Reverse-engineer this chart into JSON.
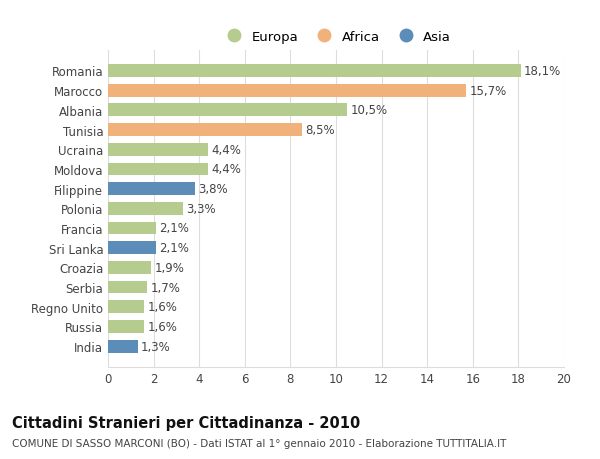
{
  "categories": [
    "Romania",
    "Marocco",
    "Albania",
    "Tunisia",
    "Ucraina",
    "Moldova",
    "Filippine",
    "Polonia",
    "Francia",
    "Sri Lanka",
    "Croazia",
    "Serbia",
    "Regno Unito",
    "Russia",
    "India"
  ],
  "values": [
    18.1,
    15.7,
    10.5,
    8.5,
    4.4,
    4.4,
    3.8,
    3.3,
    2.1,
    2.1,
    1.9,
    1.7,
    1.6,
    1.6,
    1.3
  ],
  "continents": [
    "Europa",
    "Africa",
    "Europa",
    "Africa",
    "Europa",
    "Europa",
    "Asia",
    "Europa",
    "Europa",
    "Asia",
    "Europa",
    "Europa",
    "Europa",
    "Europa",
    "Asia"
  ],
  "labels": [
    "18,1%",
    "15,7%",
    "10,5%",
    "8,5%",
    "4,4%",
    "4,4%",
    "3,8%",
    "3,3%",
    "2,1%",
    "2,1%",
    "1,9%",
    "1,7%",
    "1,6%",
    "1,6%",
    "1,3%"
  ],
  "colors": {
    "Europa": "#b5cc8e",
    "Africa": "#f0b27a",
    "Asia": "#5b8db8"
  },
  "xlim": [
    0,
    20
  ],
  "xticks": [
    0,
    2,
    4,
    6,
    8,
    10,
    12,
    14,
    16,
    18,
    20
  ],
  "title": "Cittadini Stranieri per Cittadinanza - 2010",
  "subtitle": "COMUNE DI SASSO MARCONI (BO) - Dati ISTAT al 1° gennaio 2010 - Elaborazione TUTTITALIA.IT",
  "background_color": "#ffffff",
  "grid_color": "#dddddd",
  "bar_height": 0.65,
  "label_fontsize": 8.5,
  "tick_fontsize": 8.5,
  "title_fontsize": 10.5,
  "subtitle_fontsize": 7.5,
  "legend_fontsize": 9.5
}
